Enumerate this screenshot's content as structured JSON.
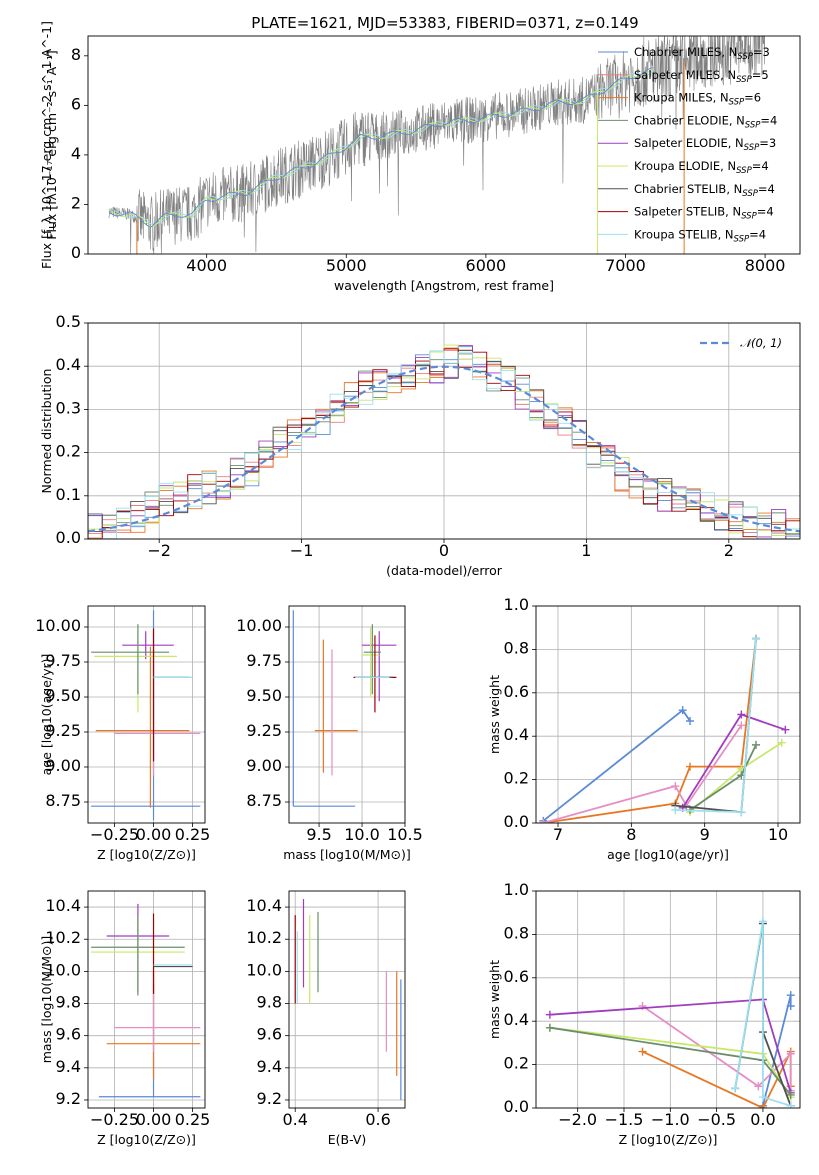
{
  "figure": {
    "title": "PLATE=1621, MJD=53383, FIBERID=0371, z=0.149"
  },
  "colors": {
    "Chabrier MILES": "#5a8ad8",
    "Salpeter MILES": "#ef7d7d",
    "Kroupa MILES": "#e87722",
    "Chabrier ELODIE": "#6b8e6b",
    "Salpeter ELODIE": "#a03cbf",
    "Kroupa ELODIE": "#c8e86b",
    "Chabrier STELIB": "#505050",
    "Salpeter STELIB": "#a00000",
    "Kroupa STELIB": "#9be0f0",
    "data": "#808080",
    "pink": "#e58fc5"
  },
  "chart_data": [
    {
      "id": "spectrum",
      "type": "line",
      "title": "PLATE=1621, MJD=53383, FIBERID=0371, z=0.149",
      "xlabel": "wavelength [Angstrom, rest frame]",
      "ylabel": "Flux [f_λ 10^-17 erg cm^-2 s^-1 A^-1]",
      "xlim": [
        3150,
        8250
      ],
      "ylim": [
        0,
        8.8
      ],
      "xticks": [
        4000,
        5000,
        6000,
        7000,
        8000
      ],
      "yticks": [
        0,
        2,
        4,
        6,
        8
      ],
      "grid": false,
      "legend_loc": "top-right",
      "legend": [
        "Chabrier MILES, N_SSP=3",
        "Salpeter MILES, N_SSP=5",
        "Kroupa MILES, N_SSP=6",
        "Chabrier ELODIE, N_SSP=4",
        "Salpeter ELODIE, N_SSP=3",
        "Kroupa ELODIE, N_SSP=4",
        "Chabrier STELIB, N_SSP=4",
        "Salpeter STELIB, N_SSP=4",
        "Kroupa STELIB, N_SSP=4"
      ],
      "continuum": [
        [
          3300,
          1.7
        ],
        [
          3450,
          1.6
        ],
        [
          3600,
          1.2
        ],
        [
          3700,
          1.5
        ],
        [
          3800,
          1.6
        ],
        [
          3900,
          1.6
        ],
        [
          4000,
          2.2
        ],
        [
          4100,
          2.3
        ],
        [
          4300,
          2.5
        ],
        [
          4500,
          3.1
        ],
        [
          4700,
          3.5
        ],
        [
          4900,
          4.0
        ],
        [
          5100,
          4.7
        ],
        [
          5300,
          4.8
        ],
        [
          5500,
          5.0
        ],
        [
          5700,
          5.3
        ],
        [
          5900,
          5.4
        ],
        [
          6100,
          5.6
        ],
        [
          6300,
          5.8
        ],
        [
          6500,
          6.1
        ],
        [
          6700,
          6.2
        ],
        [
          6900,
          6.8
        ],
        [
          7100,
          7.3
        ],
        [
          7300,
          7.5
        ],
        [
          7500,
          8.0
        ],
        [
          7700,
          8.2
        ],
        [
          8000,
          8.6
        ]
      ]
    },
    {
      "id": "residual-hist",
      "type": "histogram",
      "xlabel": "(data-model)/error",
      "ylabel": "Normed distribution",
      "xlim": [
        -2.5,
        2.5
      ],
      "ylim": [
        0,
        0.5
      ],
      "xticks": [
        -2,
        -1,
        0,
        1,
        2
      ],
      "yticks": [
        0.0,
        0.1,
        0.2,
        0.3,
        0.4,
        0.5
      ],
      "grid": true,
      "legend_loc": "top-right",
      "reference_curve": "N(0,1)",
      "bins": [
        -2.5,
        -2.4,
        -2.3,
        -2.2,
        -2.1,
        -2.0,
        -1.9,
        -1.8,
        -1.7,
        -1.6,
        -1.5,
        -1.4,
        -1.3,
        -1.2,
        -1.1,
        -1.0,
        -0.9,
        -0.8,
        -0.7,
        -0.6,
        -0.5,
        -0.4,
        -0.3,
        -0.2,
        -0.1,
        0.0,
        0.1,
        0.2,
        0.3,
        0.4,
        0.5,
        0.6,
        0.7,
        0.8,
        0.9,
        1.0,
        1.1,
        1.2,
        1.3,
        1.4,
        1.5,
        1.6,
        1.7,
        1.8,
        1.9,
        2.0,
        2.1,
        2.2,
        2.3,
        2.4,
        2.5
      ],
      "base_density": [
        0.02,
        0.03,
        0.035,
        0.05,
        0.07,
        0.09,
        0.1,
        0.11,
        0.12,
        0.13,
        0.15,
        0.16,
        0.2,
        0.22,
        0.24,
        0.25,
        0.28,
        0.3,
        0.33,
        0.35,
        0.36,
        0.37,
        0.38,
        0.39,
        0.4,
        0.41,
        0.42,
        0.4,
        0.38,
        0.36,
        0.34,
        0.31,
        0.29,
        0.28,
        0.24,
        0.2,
        0.18,
        0.15,
        0.13,
        0.12,
        0.1,
        0.09,
        0.08,
        0.07,
        0.06,
        0.05,
        0.04,
        0.03,
        0.03,
        0.02
      ]
    },
    {
      "id": "age-vs-Z",
      "type": "errorbar",
      "xlabel": "Z [log10(Z/Z⊙)]",
      "ylabel": "age  [log10(age/yr)]",
      "xlim": [
        -0.42,
        0.33
      ],
      "ylim": [
        8.6,
        10.15
      ],
      "xticks": [
        -0.25,
        0.0,
        0.25
      ],
      "yticks": [
        8.75,
        9.0,
        9.25,
        9.5,
        9.75,
        10.0
      ],
      "grid": true,
      "points": [
        {
          "model": "Chabrier MILES",
          "x": 0.0,
          "xerr": [
            0.4,
            0.3
          ],
          "y": 8.72,
          "yerr": [
            0.1,
            1.4
          ]
        },
        {
          "model": "Kroupa MILES",
          "x": -0.02,
          "xerr": [
            0.35,
            0.25
          ],
          "y": 9.26,
          "yerr": [
            0.55,
            0.6
          ]
        },
        {
          "model": "pink",
          "x": 0.0,
          "xerr": [
            0.25,
            0.3
          ],
          "y": 9.24,
          "yerr": [
            0.3,
            0.6
          ]
        },
        {
          "model": "Salpeter ELODIE",
          "x": -0.05,
          "xerr": [
            0.15,
            0.18
          ],
          "y": 9.87,
          "yerr": [
            0.1,
            0.1
          ]
        },
        {
          "model": "Kroupa ELODIE",
          "x": -0.1,
          "xerr": [
            0.28,
            0.25
          ],
          "y": 9.79,
          "yerr": [
            0.4,
            0.2
          ]
        },
        {
          "model": "Chabrier ELODIE",
          "x": -0.1,
          "xerr": [
            0.3,
            0.2
          ],
          "y": 9.82,
          "yerr": [
            0.3,
            0.2
          ]
        },
        {
          "model": "Salpeter STELIB",
          "x": 0.0,
          "xerr": [
            0.0,
            0.0
          ],
          "y": 9.64,
          "yerr": [
            0.6,
            0.35
          ]
        },
        {
          "model": "Chabrier STELIB",
          "x": 0.05,
          "xerr": [
            0.05,
            0.18
          ],
          "y": 9.64,
          "yerr": [
            0.0,
            0.0
          ]
        },
        {
          "model": "Kroupa STELIB",
          "x": 0.05,
          "xerr": [
            0.05,
            0.2
          ],
          "y": 9.64,
          "yerr": [
            0.0,
            0.0
          ]
        }
      ]
    },
    {
      "id": "age-vs-mass",
      "type": "errorbar",
      "xlabel": "mass [log10(M/M⊙)]",
      "ylabel": "",
      "xlim": [
        9.15,
        10.5
      ],
      "ylim": [
        8.6,
        10.15
      ],
      "xticks": [
        9.5,
        10.0,
        10.5
      ],
      "yticks": [
        8.75,
        9.0,
        9.25,
        9.5,
        9.75,
        10.0
      ],
      "grid": true,
      "points": [
        {
          "model": "Chabrier MILES",
          "x": 9.2,
          "xerr": [
            0.0,
            0.72
          ],
          "y": 8.72,
          "yerr": [
            0.0,
            1.4
          ]
        },
        {
          "model": "Kroupa MILES",
          "x": 9.55,
          "xerr": [
            0.1,
            0.4
          ],
          "y": 9.26,
          "yerr": [
            0.3,
            0.65
          ]
        },
        {
          "model": "pink",
          "x": 9.65,
          "xerr": [
            0.0,
            0.0
          ],
          "y": 9.24,
          "yerr": [
            0.3,
            0.6
          ]
        },
        {
          "model": "Salpeter ELODIE",
          "x": 10.2,
          "xerr": [
            0.2,
            0.2
          ],
          "y": 9.87,
          "yerr": [
            0.4,
            0.1
          ]
        },
        {
          "model": "Kroupa ELODIE",
          "x": 10.1,
          "xerr": [
            0.1,
            0.1
          ],
          "y": 9.8,
          "yerr": [
            0.3,
            0.2
          ]
        },
        {
          "model": "Chabrier ELODIE",
          "x": 10.12,
          "xerr": [
            0.1,
            0.1
          ],
          "y": 9.82,
          "yerr": [
            0.3,
            0.2
          ]
        },
        {
          "model": "Salpeter STELIB",
          "x": 10.15,
          "xerr": [
            0.25,
            0.25
          ],
          "y": 9.64,
          "yerr": [
            0.25,
            0.3
          ]
        },
        {
          "model": "Chabrier STELIB",
          "x": 10.05,
          "xerr": [
            0.1,
            0.3
          ],
          "y": 9.64,
          "yerr": [
            0.0,
            0.0
          ]
        },
        {
          "model": "Kroupa STELIB",
          "x": 10.02,
          "xerr": [
            0.1,
            0.3
          ],
          "y": 9.64,
          "yerr": [
            0.0,
            0.0
          ]
        }
      ]
    },
    {
      "id": "massweight-vs-age",
      "type": "line",
      "xlabel": "age  [log10(age/yr)]",
      "ylabel": "mass weight",
      "xlim": [
        6.7,
        10.3
      ],
      "ylim": [
        0.0,
        1.0
      ],
      "xticks": [
        7,
        8,
        9,
        10
      ],
      "yticks": [
        0.0,
        0.2,
        0.4,
        0.6,
        0.8,
        1.0
      ],
      "grid": true,
      "series": [
        {
          "model": "Chabrier MILES",
          "x": [
            6.8,
            8.7,
            8.8
          ],
          "y": [
            0.01,
            0.52,
            0.47
          ]
        },
        {
          "model": "Kroupa MILES",
          "x": [
            6.8,
            8.6,
            8.8,
            9.5,
            9.7
          ],
          "y": [
            0.0,
            0.09,
            0.26,
            0.26,
            0.85
          ]
        },
        {
          "model": "pink",
          "x": [
            6.8,
            8.6,
            8.75,
            9.5
          ],
          "y": [
            0.0,
            0.17,
            0.08,
            0.45
          ]
        },
        {
          "model": "Salpeter ELODIE",
          "x": [
            8.7,
            9.5,
            10.1
          ],
          "y": [
            0.07,
            0.5,
            0.43
          ]
        },
        {
          "model": "Kroupa ELODIE",
          "x": [
            8.8,
            9.5,
            10.05
          ],
          "y": [
            0.05,
            0.25,
            0.37
          ]
        },
        {
          "model": "Chabrier ELODIE",
          "x": [
            8.8,
            9.5,
            9.7
          ],
          "y": [
            0.06,
            0.22,
            0.36
          ]
        },
        {
          "model": "Chabrier STELIB",
          "x": [
            8.6,
            9.5,
            9.7
          ],
          "y": [
            0.08,
            0.05,
            0.85
          ]
        },
        {
          "model": "Kroupa STELIB",
          "x": [
            8.6,
            9.5,
            9.7
          ],
          "y": [
            0.06,
            0.05,
            0.85
          ]
        }
      ]
    },
    {
      "id": "mass-vs-Z",
      "type": "errorbar",
      "xlabel": "Z [log10(Z/Z⊙)]",
      "ylabel": "mass [log10(M/M⊙)]",
      "xlim": [
        -0.42,
        0.33
      ],
      "ylim": [
        9.15,
        10.5
      ],
      "xticks": [
        -0.25,
        0.0,
        0.25
      ],
      "yticks": [
        9.2,
        9.4,
        9.6,
        9.8,
        10.0,
        10.2,
        10.4
      ],
      "grid": true,
      "points": [
        {
          "model": "Chabrier MILES",
          "x": 0.0,
          "xerr": [
            0.35,
            0.3
          ],
          "y": 9.22,
          "yerr": [
            0.0,
            0.7
          ]
        },
        {
          "model": "Kroupa MILES",
          "x": 0.0,
          "xerr": [
            0.3,
            0.3
          ],
          "y": 9.55,
          "yerr": [
            0.22,
            0.45
          ]
        },
        {
          "model": "pink",
          "x": 0.0,
          "xerr": [
            0.25,
            0.3
          ],
          "y": 9.65,
          "yerr": [
            0.15,
            0.35
          ]
        },
        {
          "model": "Salpeter ELODIE",
          "x": -0.1,
          "xerr": [
            0.2,
            0.2
          ],
          "y": 10.22,
          "yerr": [
            0.35,
            0.2
          ]
        },
        {
          "model": "Kroupa ELODIE",
          "x": -0.1,
          "xerr": [
            0.3,
            0.3
          ],
          "y": 10.12,
          "yerr": [
            0.2,
            0.2
          ]
        },
        {
          "model": "Chabrier ELODIE",
          "x": -0.1,
          "xerr": [
            0.3,
            0.3
          ],
          "y": 10.15,
          "yerr": [
            0.3,
            0.2
          ]
        },
        {
          "model": "Salpeter STELIB",
          "x": 0.0,
          "xerr": [
            0.0,
            0.0
          ],
          "y": 10.16,
          "yerr": [
            0.3,
            0.2
          ]
        },
        {
          "model": "Chabrier STELIB",
          "x": 0.05,
          "xerr": [
            0.05,
            0.2
          ],
          "y": 10.03,
          "yerr": [
            0.0,
            0.0
          ]
        },
        {
          "model": "Kroupa STELIB",
          "x": 0.05,
          "xerr": [
            0.05,
            0.2
          ],
          "y": 10.04,
          "yerr": [
            0.0,
            0.0
          ]
        }
      ]
    },
    {
      "id": "mass-vs-EBV",
      "type": "errorbar",
      "xlabel": "E(B-V)",
      "ylabel": "",
      "xlim": [
        0.385,
        0.665
      ],
      "ylim": [
        9.15,
        10.5
      ],
      "xticks": [
        0.4,
        0.6
      ],
      "yticks": [
        9.2,
        9.4,
        9.6,
        9.8,
        10.0,
        10.2,
        10.4
      ],
      "grid": true,
      "points": [
        {
          "model": "Salpeter STELIB",
          "x": 0.4,
          "y": 10.1,
          "yerr": [
            0.3,
            0.25
          ]
        },
        {
          "model": "Kroupa STELIB",
          "x": 0.405,
          "y": 10.0,
          "yerr": [
            0.2,
            0.25
          ]
        },
        {
          "model": "Salpeter ELODIE",
          "x": 0.42,
          "y": 10.2,
          "yerr": [
            0.3,
            0.25
          ]
        },
        {
          "model": "Kroupa ELODIE",
          "x": 0.435,
          "y": 10.1,
          "yerr": [
            0.3,
            0.25
          ]
        },
        {
          "model": "Chabrier ELODIE",
          "x": 0.455,
          "y": 10.12,
          "yerr": [
            0.25,
            0.25
          ]
        },
        {
          "model": "pink",
          "x": 0.62,
          "y": 9.65,
          "yerr": [
            0.15,
            0.35
          ]
        },
        {
          "model": "Kroupa MILES",
          "x": 0.645,
          "y": 9.55,
          "yerr": [
            0.2,
            0.45
          ]
        },
        {
          "model": "Chabrier MILES",
          "x": 0.655,
          "y": 9.6,
          "yerr": [
            0.4,
            0.35
          ]
        }
      ]
    },
    {
      "id": "massweight-vs-Z",
      "type": "line",
      "xlabel": "Z [log10(Z/Z⊙)]",
      "ylabel": "mass weight",
      "xlim": [
        -2.45,
        0.4
      ],
      "ylim": [
        0.0,
        1.0
      ],
      "xticks": [
        -2.0,
        -1.5,
        -1.0,
        -0.5,
        0.0
      ],
      "yticks": [
        0.0,
        0.2,
        0.4,
        0.6,
        0.8,
        1.0
      ],
      "grid": true,
      "series": [
        {
          "model": "Chabrier MILES",
          "x": [
            0.0,
            0.3,
            0.3
          ],
          "y": [
            0.01,
            0.52,
            0.47
          ]
        },
        {
          "model": "Kroupa MILES",
          "x": [
            -1.3,
            0.0,
            0.3,
            0.3
          ],
          "y": [
            0.26,
            0.0,
            0.26,
            0.1
          ]
        },
        {
          "model": "pink",
          "x": [
            -1.3,
            -0.05,
            0.3,
            0.3
          ],
          "y": [
            0.47,
            0.1,
            0.25,
            0.08
          ]
        },
        {
          "model": "Salpeter ELODIE",
          "x": [
            -2.3,
            0.0,
            0.3
          ],
          "y": [
            0.43,
            0.5,
            0.07
          ]
        },
        {
          "model": "Kroupa ELODIE",
          "x": [
            -2.3,
            0.0,
            0.3
          ],
          "y": [
            0.37,
            0.25,
            0.05
          ]
        },
        {
          "model": "Chabrier ELODIE",
          "x": [
            -2.3,
            0.0,
            0.3
          ],
          "y": [
            0.37,
            0.22,
            0.06
          ]
        },
        {
          "model": "Chabrier STELIB",
          "x": [
            -0.3,
            0.0,
            0.0,
            0.3
          ],
          "y": [
            0.09,
            0.85,
            0.35,
            0.01
          ]
        },
        {
          "model": "Kroupa STELIB",
          "x": [
            -0.3,
            0.0,
            0.0,
            0.3
          ],
          "y": [
            0.09,
            0.86,
            0.05,
            0.01
          ]
        }
      ]
    }
  ]
}
